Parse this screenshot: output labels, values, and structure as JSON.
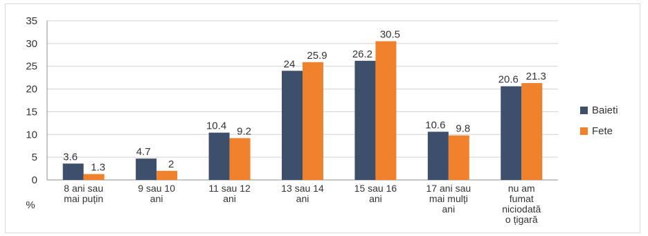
{
  "chart_data": {
    "type": "bar",
    "title": "",
    "xlabel": "",
    "ylabel": "%",
    "ylim": [
      0,
      35
    ],
    "yticks": [
      "35",
      "30",
      "25",
      "20",
      "15",
      "10",
      "5",
      "0"
    ],
    "grid": true,
    "legend_position": "right",
    "categories": [
      [
        "8 ani sau",
        "mai puțin"
      ],
      [
        "9 sau 10",
        "ani"
      ],
      [
        "11 sau 12",
        "ani"
      ],
      [
        "13 sau 14",
        "ani"
      ],
      [
        "15 sau 16",
        "ani"
      ],
      [
        "17  ani sau",
        "mai mulți",
        "ani"
      ],
      [
        "nu am",
        "fumat",
        "niciodată",
        "o țigară"
      ]
    ],
    "series": [
      {
        "name": "Baieti",
        "color": "#3d4f6b",
        "values": [
          3.6,
          4.7,
          10.4,
          24,
          26.2,
          10.6,
          20.6
        ],
        "labels": [
          "3.6",
          "4.7",
          "10.4",
          "24",
          "26.2",
          "10.6",
          "20.6"
        ]
      },
      {
        "name": "Fete",
        "color": "#f0822d",
        "values": [
          1.3,
          2,
          9.2,
          25.9,
          30.5,
          9.8,
          21.3
        ],
        "labels": [
          "1.3",
          "2",
          "9.2",
          "25.9",
          "30.5",
          "9.8",
          "21.3"
        ]
      }
    ]
  }
}
